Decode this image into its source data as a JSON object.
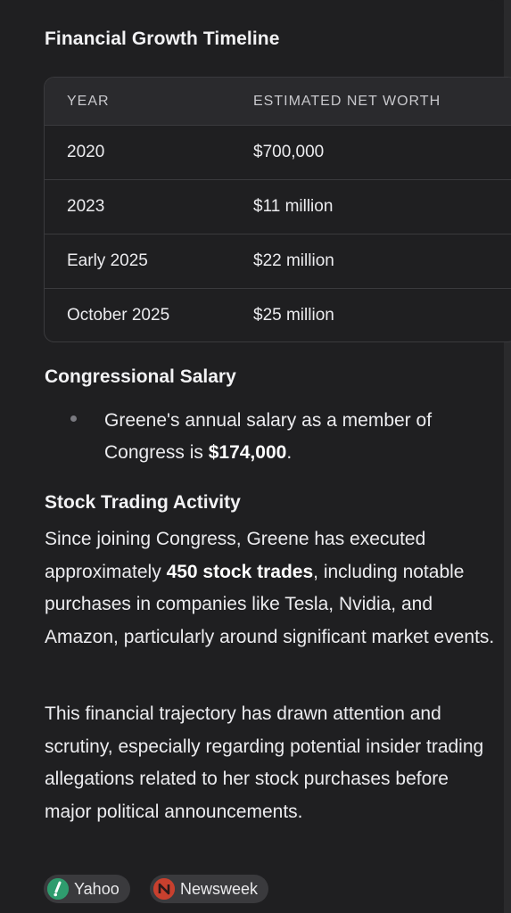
{
  "section_title": "Financial Growth Timeline",
  "table": {
    "headers": [
      "YEAR",
      "ESTIMATED NET WORTH"
    ],
    "rows": [
      [
        "2020",
        "$700,000"
      ],
      [
        "2023",
        "$11 million"
      ],
      [
        "Early 2025",
        "$22 million"
      ],
      [
        "October 2025",
        "$25 million"
      ]
    ]
  },
  "salary": {
    "heading": "Congressional Salary",
    "bullet_text": "Greene's annual salary as a member of Congress is ",
    "bullet_bold": "$174,000",
    "bullet_end": "."
  },
  "trading": {
    "heading": "Stock Trading Activity",
    "p1_start": "Since joining Congress, Greene has executed approximately ",
    "p1_bold": "450 stock trades",
    "p1_end": ", including notable purchases in companies like Tesla, Nvidia, and Amazon, particularly around significant market events.",
    "p2": "This financial trajectory has drawn attention and scrutiny, especially regarding potential insider trading allegations related to her stock purchases before major political announcements."
  },
  "sources": [
    {
      "label": "Yahoo",
      "icon": "yahoo-icon",
      "color": "#2f9c6e"
    },
    {
      "label": "Newsweek",
      "icon": "newsweek-icon",
      "color": "#c8402e"
    }
  ]
}
